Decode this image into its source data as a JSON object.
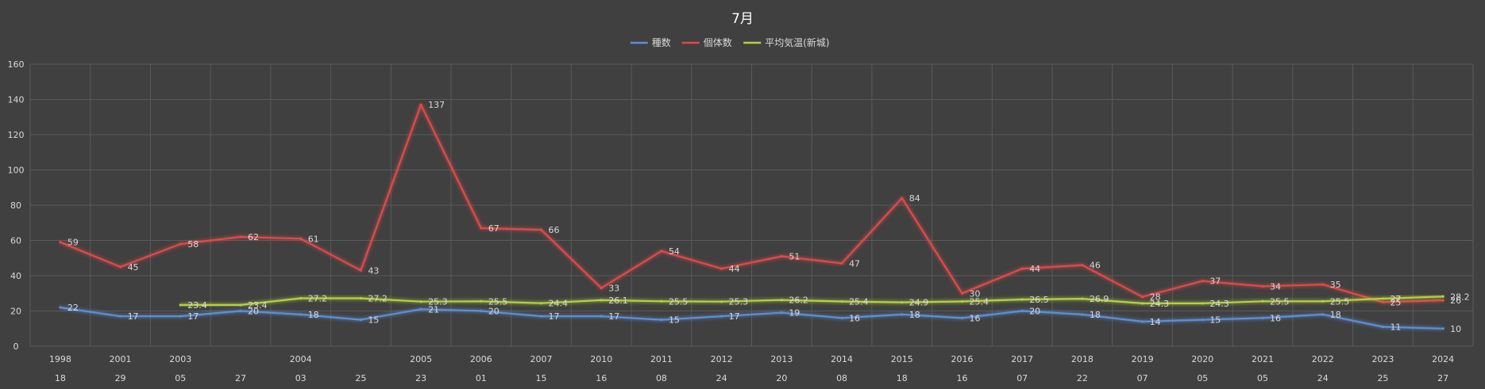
{
  "chart_data": {
    "type": "line",
    "title": "7月",
    "legend_position": "top",
    "grid": true,
    "ylim": [
      0,
      160
    ],
    "yticks": [
      "0",
      "20",
      "40",
      "60",
      "80",
      "100",
      "120",
      "140",
      "160"
    ],
    "categories": [
      {
        "year": "1998",
        "day": "18"
      },
      {
        "year": "2001",
        "day": "29"
      },
      {
        "year": "2003",
        "day": "05"
      },
      {
        "year": "",
        "day": "27"
      },
      {
        "year": "2004",
        "day": "03"
      },
      {
        "year": "",
        "day": "25"
      },
      {
        "year": "2005",
        "day": "23"
      },
      {
        "year": "2006",
        "day": "01"
      },
      {
        "year": "2007",
        "day": "15"
      },
      {
        "year": "2010",
        "day": "16"
      },
      {
        "year": "2011",
        "day": "08"
      },
      {
        "year": "2012",
        "day": "24"
      },
      {
        "year": "2013",
        "day": "20"
      },
      {
        "year": "2014",
        "day": "08"
      },
      {
        "year": "2015",
        "day": "18"
      },
      {
        "year": "2016",
        "day": "16"
      },
      {
        "year": "2017",
        "day": "07"
      },
      {
        "year": "2018",
        "day": "22"
      },
      {
        "year": "2019",
        "day": "07"
      },
      {
        "year": "2020",
        "day": "05"
      },
      {
        "year": "2021",
        "day": "05"
      },
      {
        "year": "2022",
        "day": "24"
      },
      {
        "year": "2023",
        "day": "25"
      },
      {
        "year": "2024",
        "day": "27"
      }
    ],
    "series": [
      {
        "name": "種数",
        "color": "#5b8fd6",
        "values": [
          22,
          17,
          17,
          20,
          18,
          15,
          21,
          20,
          17,
          17,
          15,
          17,
          19,
          16,
          18,
          16,
          20,
          18,
          14,
          15,
          16,
          18,
          11,
          10
        ]
      },
      {
        "name": "個体数",
        "color": "#e04a4a",
        "values": [
          59,
          45,
          58,
          62,
          61,
          43,
          137,
          67,
          66,
          33,
          54,
          44,
          51,
          47,
          84,
          30,
          44,
          46,
          28,
          37,
          34,
          35,
          25,
          26
        ]
      },
      {
        "name": "平均気温(新城)",
        "color": "#b4d23c",
        "values": [
          null,
          null,
          23.4,
          23.4,
          27.2,
          27.2,
          25.3,
          25.5,
          24.4,
          26.1,
          25.5,
          25.3,
          26.2,
          25.4,
          24.9,
          25.4,
          26.5,
          26.9,
          24.3,
          24.3,
          25.5,
          25.5,
          27,
          28.2
        ]
      }
    ]
  }
}
